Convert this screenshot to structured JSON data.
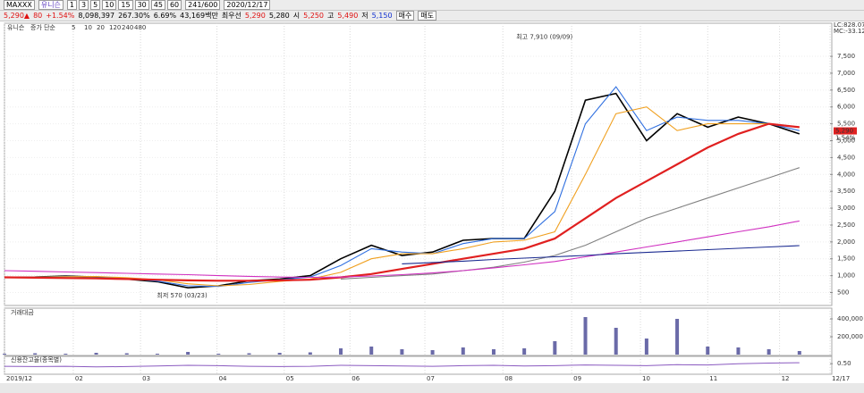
{
  "toolbar": {
    "code": "MAXXX",
    "name": "유니슨",
    "count": "241/600",
    "date": "2020/12/17",
    "periods": [
      "1",
      "3",
      "5",
      "10",
      "15",
      "30",
      "45",
      "60"
    ],
    "quote": [
      "5,290▲",
      "80",
      "+1.54%",
      "8,098,397",
      "267.30%",
      "6.69%",
      "43,169백만",
      "최우선",
      "5,290",
      "5,280",
      "시",
      "5,250",
      "고",
      "5,490",
      "저",
      "5,150"
    ],
    "buttons": [
      "매수",
      "매도"
    ]
  },
  "chart_data": [
    {
      "type": "line",
      "title": "유니슨",
      "legend_label": "증가 단순",
      "indicators": [
        "LC:828.07",
        "MC:-33.12"
      ],
      "last_label": {
        "value": 5290,
        "label": "5,290"
      },
      "change_label": "1.54%",
      "annotations": [
        {
          "text": "최고 7,910 (09/09)",
          "x": 37.4,
          "y": 7910
        },
        {
          "text": "최저 570 (03/23)",
          "x": 11.5,
          "y": 570
        }
      ],
      "x": [
        0,
        2,
        4,
        6,
        8,
        10,
        12,
        14,
        16,
        18,
        20,
        22,
        24,
        26,
        28,
        30,
        32,
        34,
        36,
        38,
        40,
        42,
        44,
        46,
        48,
        50,
        52
      ],
      "xlim": [
        0,
        54
      ],
      "xticks": [
        {
          "value": 0,
          "label": "2019/12"
        },
        {
          "value": 4.5,
          "label": "02"
        },
        {
          "value": 8.9,
          "label": "03"
        },
        {
          "value": 13.9,
          "label": "04"
        },
        {
          "value": 18.3,
          "label": "05"
        },
        {
          "value": 22.6,
          "label": "06"
        },
        {
          "value": 27.5,
          "label": "07"
        },
        {
          "value": 32.6,
          "label": "08"
        },
        {
          "value": 37.1,
          "label": "09"
        },
        {
          "value": 41.6,
          "label": "10"
        },
        {
          "value": 46,
          "label": "11"
        },
        {
          "value": 50.7,
          "label": "12"
        },
        {
          "value": 54,
          "label": "12/17"
        }
      ],
      "ylim": [
        170,
        8110
      ],
      "yticks": [
        500,
        {
          "value": 1000,
          "label": "1,000"
        },
        {
          "value": 1500,
          "label": "1,500"
        },
        {
          "value": 2000,
          "label": "2,000"
        },
        {
          "value": 2500,
          "label": "2,500"
        },
        {
          "value": 3000,
          "label": "3,000"
        },
        {
          "value": 3500,
          "label": "3,500"
        },
        {
          "value": 4000,
          "label": "4,000"
        },
        {
          "value": 4500,
          "label": "4,500"
        },
        {
          "value": 5000,
          "label": "5,000"
        },
        {
          "value": 5500,
          "label": "5,500"
        },
        {
          "value": 6000,
          "label": "6,000"
        },
        {
          "value": 6500,
          "label": "6,500"
        },
        {
          "value": 7000,
          "label": "7,000"
        },
        {
          "value": 7500,
          "label": "7,500"
        }
      ],
      "grid": true,
      "series": [
        {
          "name": "5",
          "color": "#000000",
          "values": [
            950,
            960,
            990,
            960,
            900,
            820,
            640,
            700,
            850,
            900,
            1000,
            1500,
            1900,
            1600,
            1700,
            2050,
            2100,
            2100,
            3500,
            6200,
            6400,
            5000,
            5800,
            5400,
            5700,
            5500,
            5200
          ]
        },
        {
          "name": "10",
          "color": "#2f6fe0",
          "values": [
            950,
            960,
            980,
            970,
            920,
            840,
            700,
            680,
            800,
            880,
            960,
            1300,
            1800,
            1700,
            1650,
            1950,
            2100,
            2100,
            2900,
            5500,
            6600,
            5300,
            5700,
            5600,
            5600,
            5500,
            5300
          ]
        },
        {
          "name": "20",
          "color": "#f0a020",
          "values": [
            950,
            955,
            970,
            975,
            940,
            880,
            760,
            700,
            740,
            830,
            900,
            1100,
            1500,
            1650,
            1650,
            1800,
            2000,
            2050,
            2300,
            4000,
            5800,
            6000,
            5300,
            5500,
            5500,
            5500,
            5400
          ]
        },
        {
          "name": "120",
          "color": "#e02020",
          "values": [
            950,
            940,
            930,
            920,
            900,
            880,
            860,
            850,
            850,
            860,
            880,
            950,
            1050,
            1200,
            1350,
            1500,
            1650,
            1800,
            2100,
            2700,
            3300,
            3800,
            4300,
            4800,
            5200,
            5500,
            5400
          ]
        },
        {
          "name": "240",
          "color": "#808080",
          "values": [
            null,
            null,
            null,
            null,
            null,
            null,
            null,
            null,
            null,
            null,
            null,
            900,
            950,
            1000,
            1050,
            1150,
            1250,
            1400,
            1600,
            1900,
            2300,
            2700,
            3000,
            3300,
            3600,
            3900,
            4200
          ]
        },
        {
          "name": "480",
          "color": "#d030c0",
          "values": [
            1150,
            1130,
            1110,
            1090,
            1070,
            1050,
            1030,
            1000,
            980,
            960,
            950,
            960,
            990,
            1030,
            1080,
            1150,
            1230,
            1320,
            1420,
            1560,
            1700,
            1850,
            2000,
            2150,
            2300,
            2450,
            2620
          ]
        },
        {
          "color": "#1a2a90",
          "values": [
            null,
            null,
            null,
            null,
            null,
            null,
            null,
            null,
            null,
            null,
            null,
            null,
            null,
            1350,
            1390,
            1430,
            1480,
            1520,
            1560,
            1600,
            1650,
            1690,
            1730,
            1770,
            1810,
            1850,
            1890
          ]
        }
      ]
    },
    {
      "type": "bar",
      "title": "거래대금",
      "color": "#6a6aa8",
      "x": [
        0,
        2,
        4,
        6,
        8,
        10,
        12,
        14,
        16,
        18,
        20,
        22,
        24,
        26,
        28,
        30,
        32,
        34,
        36,
        38,
        40,
        42,
        44,
        46,
        48,
        50,
        52
      ],
      "xlim": [
        0,
        54
      ],
      "ylim": [
        0,
        450000
      ],
      "yticks": [
        {
          "value": 200000,
          "label": "200,000"
        },
        {
          "value": 400000,
          "label": "400,000"
        }
      ],
      "values": [
        10000,
        15000,
        10000,
        20000,
        15000,
        10000,
        30000,
        10000,
        15000,
        20000,
        25000,
        70000,
        90000,
        60000,
        50000,
        80000,
        60000,
        70000,
        150000,
        420000,
        300000,
        180000,
        400000,
        90000,
        80000,
        60000,
        40000
      ]
    },
    {
      "type": "line",
      "title": "신용잔고율(종목별)",
      "color": "#8a5ac0",
      "x": [
        0,
        2,
        4,
        6,
        8,
        10,
        12,
        14,
        16,
        18,
        20,
        22,
        24,
        26,
        28,
        30,
        32,
        34,
        36,
        38,
        40,
        42,
        44,
        46,
        48,
        50,
        52
      ],
      "xlim": [
        0,
        54
      ],
      "ylim": [
        0.2,
        0.7
      ],
      "yticks": [
        {
          "value": 0.5,
          "label": "0.50"
        }
      ],
      "values": [
        0.42,
        0.41,
        0.42,
        0.4,
        0.41,
        0.43,
        0.45,
        0.44,
        0.42,
        0.41,
        0.42,
        0.45,
        0.44,
        0.43,
        0.42,
        0.44,
        0.45,
        0.43,
        0.44,
        0.46,
        0.45,
        0.44,
        0.47,
        0.46,
        0.5,
        0.52,
        0.53
      ]
    }
  ]
}
